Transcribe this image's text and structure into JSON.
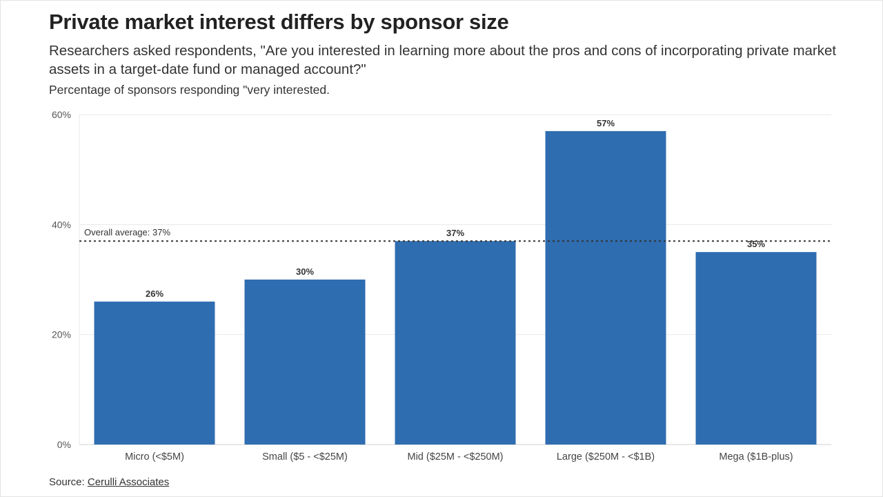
{
  "header": {
    "title": "Private market interest differs by sponsor size",
    "subtitle": "Researchers asked respondents, \"Are you interested in learning more about the pros and cons of incorporating private market assets in a target-date fund or managed account?\"",
    "note": "Percentage of sponsors responding \"very interested."
  },
  "footer": {
    "source_prefix": "Source: ",
    "source_link": "Cerulli Associates"
  },
  "colors": {
    "bar": "#2f6db1",
    "grid": "#e8e8e8",
    "reference_line": "#333333"
  },
  "chart_data": {
    "type": "bar",
    "categories": [
      "Micro (<$5M)",
      "Small ($5 - <$25M)",
      "Mid ($25M - <$250M)",
      "Large ($250M - <$1B)",
      "Mega ($1B-plus)"
    ],
    "values": [
      26,
      30,
      37,
      57,
      35
    ],
    "data_labels": [
      "26%",
      "30%",
      "37%",
      "57%",
      "35%"
    ],
    "ylim": [
      0,
      60
    ],
    "yticks": [
      0,
      20,
      40,
      60
    ],
    "ytick_labels": [
      "0%",
      "20%",
      "40%",
      "60%"
    ],
    "reference_line": {
      "value": 37,
      "label": "Overall average: 37%",
      "style": "dotted"
    },
    "xlabel": "",
    "ylabel": "",
    "grid": true
  }
}
